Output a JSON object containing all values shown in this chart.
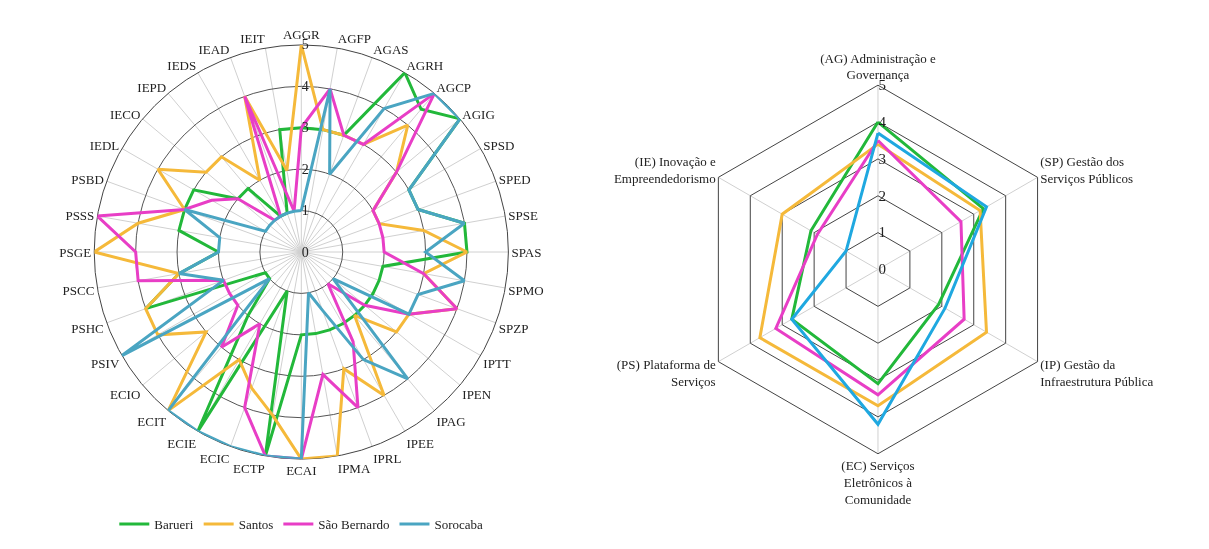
{
  "chart_data": [
    {
      "type": "radar",
      "categories": [
        "AGGR",
        "AGFP",
        "AGAS",
        "AGRH",
        "AGCP",
        "AGIG",
        "SPSD",
        "SPED",
        "SPSE",
        "SPAS",
        "SPMO",
        "SPZP",
        "IPTT",
        "IPEN",
        "IPAG",
        "IPEE",
        "IPRL",
        "IPMA",
        "ECAI",
        "ECTP",
        "ECIC",
        "ECIE",
        "ECIT",
        "ECIO",
        "PSIV",
        "PSHC",
        "PSCC",
        "PSGE",
        "PSSS",
        "PSBD",
        "IEDL",
        "IECO",
        "IEPD",
        "IEDS",
        "IEAD",
        "IEIT"
      ],
      "ylim": [
        0,
        5
      ],
      "yticks": [
        0,
        1,
        2,
        3,
        4,
        5
      ],
      "grid": true,
      "legend": "bottom",
      "series": [
        {
          "name": "Barueri",
          "color": "#22b83a",
          "values": [
            3,
            3,
            3,
            5,
            4.5,
            5,
            3,
            3,
            4,
            4,
            2,
            2,
            2,
            2,
            2,
            2,
            2,
            2,
            2,
            5,
            1,
            5,
            2,
            1,
            1,
            4,
            3,
            2,
            3,
            3,
            3,
            2,
            2,
            1,
            1,
            3
          ]
        },
        {
          "name": "Santos",
          "color": "#f5b93a",
          "values": [
            5,
            3,
            3,
            3,
            4,
            3,
            2,
            2,
            3,
            4,
            3,
            4,
            3,
            3,
            2,
            4,
            3,
            5,
            5,
            4,
            3.5,
            3,
            5,
            3,
            4,
            4,
            3,
            5,
            4,
            3,
            4,
            3,
            3,
            2,
            4,
            2
          ]
        },
        {
          "name": "São Bernardo",
          "color": "#e83ec6",
          "values": [
            3,
            4,
            3,
            3,
            5,
            3,
            2,
            2,
            2,
            2,
            3,
            4,
            3,
            2,
            1,
            2.5,
            4,
            3,
            5,
            5,
            4,
            2,
            3,
            2,
            2,
            2,
            4,
            4,
            5,
            3,
            2.5,
            2,
            1,
            1,
            4,
            1
          ]
        },
        {
          "name": "Sorocaba",
          "color": "#4aa5c2",
          "values": [
            1,
            4,
            2,
            4,
            5,
            5,
            3,
            3,
            4,
            3,
            4,
            3,
            3,
            1,
            4,
            3,
            1.5,
            1,
            5,
            5,
            5,
            5,
            5,
            1,
            5,
            2,
            3,
            2,
            2,
            3,
            1,
            1,
            1,
            1,
            1,
            1
          ]
        }
      ]
    },
    {
      "type": "radar",
      "categories": [
        "(AG) Administração e Governança",
        "(SP) Gestão dos Serviços Públicos",
        "(IP) Gestão da Infraestrutura Pública",
        "(EC) Serviços Eletrônicos à Comunidade",
        "(PS) Plataforma de Serviços",
        "(IE) Inovação e Empreendedorismo"
      ],
      "ylim": [
        0,
        5
      ],
      "yticks": [
        0,
        1,
        2,
        3,
        4,
        5
      ],
      "grid": true,
      "series": [
        {
          "color": "#22b83a",
          "values": [
            4.0,
            3.3,
            1.9,
            3.1,
            2.7,
            2.1
          ]
        },
        {
          "color": "#f5b93a",
          "values": [
            3.4,
            3.2,
            3.4,
            3.7,
            3.7,
            3.0
          ]
        },
        {
          "color": "#e83ec6",
          "values": [
            3.5,
            2.6,
            2.7,
            3.4,
            3.2,
            1.9
          ]
        },
        {
          "color": "#1fa8e0",
          "values": [
            3.7,
            3.4,
            2.1,
            4.2,
            2.7,
            1.0
          ]
        }
      ]
    }
  ]
}
